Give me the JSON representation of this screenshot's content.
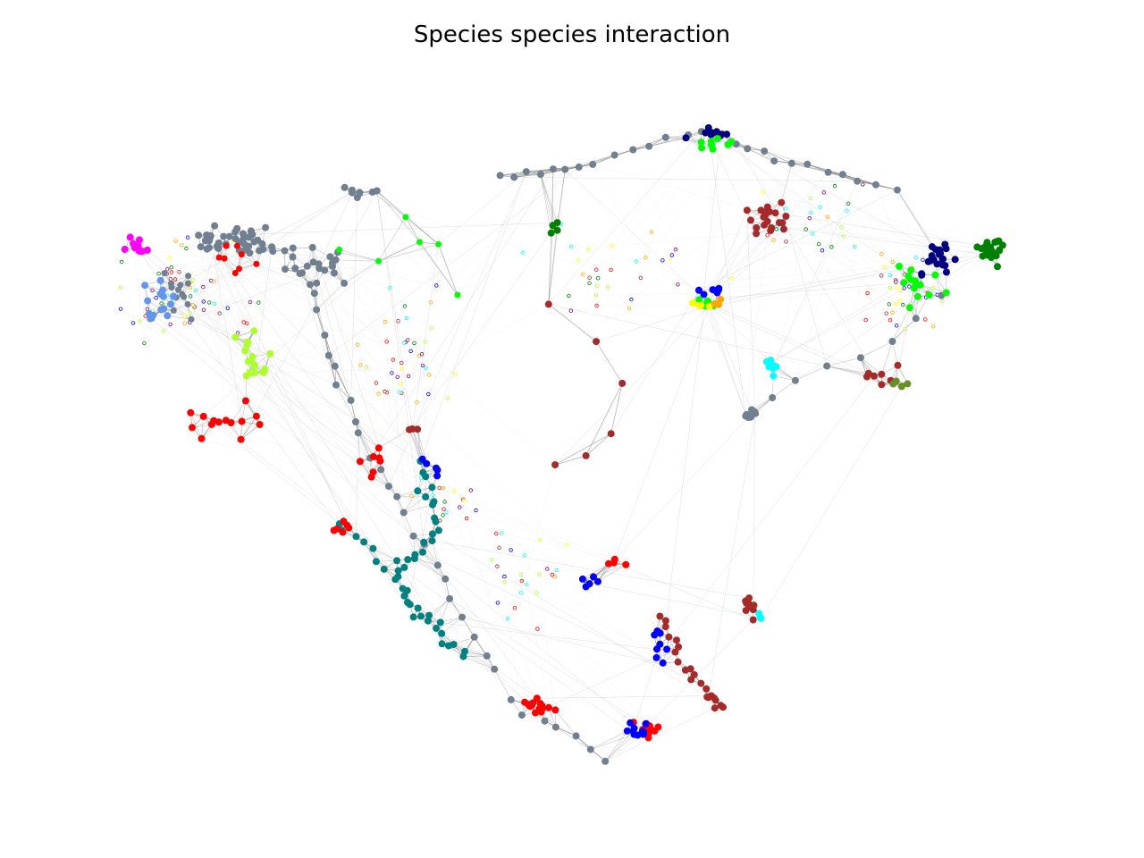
{
  "title": "Species species interaction",
  "graph": {
    "edge_colors": {
      "strong": "#7f7f7f",
      "light": "#bdbdbd",
      "faint": "#e6e6e6"
    },
    "node_palette": {
      "slategray": "#708090",
      "red": "#ff0000",
      "brown": "#a52a2a",
      "blue": "#0000ff",
      "navy": "#000080",
      "teal": "#008080",
      "lime": "#00ff00",
      "green": "#008000",
      "magenta": "#ff00ff",
      "cornflowerblue": "#6495ed",
      "greenyellow": "#adff2f",
      "cyan": "#00ffff",
      "yellow": "#ffff00",
      "orange": "#ffa500",
      "olive": "#6b8e23",
      "purple": "#800080"
    },
    "layout": "force-directed species interaction network"
  }
}
